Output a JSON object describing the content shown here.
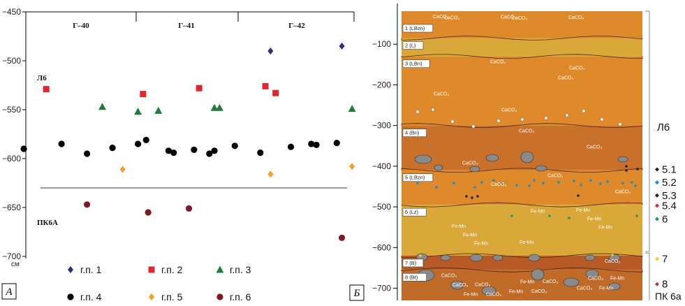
{
  "chart_data": [
    {
      "type": "scatter",
      "panel_label": "А",
      "yunit": "см",
      "ylim": [
        -700,
        -450
      ],
      "yticks": [
        -450,
        -500,
        -550,
        -600,
        -650,
        -700
      ],
      "grid": false,
      "sections": [
        "Г–40",
        "Г–41",
        "Г–42"
      ],
      "zones": [
        {
          "label": "Л6",
          "y": -520
        },
        {
          "label": "ПК6А",
          "y": -668
        }
      ],
      "boundary_y": -630,
      "legend_position": "bottom",
      "series": [
        {
          "name": "г.п. 1",
          "marker": "diamond",
          "color": "#2b2f7a",
          "points": [
            [
              2.4,
              -490
            ],
            [
              3.1,
              -485
            ]
          ]
        },
        {
          "name": "г.п. 2",
          "marker": "square",
          "color": "#e3262c",
          "points": [
            [
              0.2,
              -529
            ],
            [
              1.15,
              -534
            ],
            [
              1.7,
              -528
            ],
            [
              2.35,
              -526
            ],
            [
              2.45,
              -533
            ]
          ]
        },
        {
          "name": "г.п. 3",
          "marker": "triangle",
          "color": "#1e7d3d",
          "points": [
            [
              0.75,
              -547
            ],
            [
              1.1,
              -552
            ],
            [
              1.3,
              -551
            ],
            [
              1.85,
              -548
            ],
            [
              1.9,
              -548
            ],
            [
              3.2,
              -549
            ]
          ]
        },
        {
          "name": "г.п. 4",
          "marker": "circle",
          "color": "#000000",
          "points": [
            [
              -0.02,
              -590
            ],
            [
              0.35,
              -585
            ],
            [
              0.6,
              -595
            ],
            [
              0.85,
              -589
            ],
            [
              1.1,
              -585
            ],
            [
              1.18,
              -581
            ],
            [
              1.4,
              -592
            ],
            [
              1.45,
              -594
            ],
            [
              1.65,
              -591
            ],
            [
              1.8,
              -595
            ],
            [
              1.85,
              -592
            ],
            [
              2.05,
              -587
            ],
            [
              2.3,
              -594
            ],
            [
              2.6,
              -588
            ],
            [
              2.8,
              -585
            ],
            [
              2.85,
              -586
            ],
            [
              3.05,
              -584
            ]
          ]
        },
        {
          "name": "г.п. 5",
          "marker": "diamond",
          "color": "#f2a02a",
          "points": [
            [
              0.95,
              -611
            ],
            [
              2.4,
              -616
            ],
            [
              3.2,
              -608
            ]
          ]
        },
        {
          "name": "г.п. 6",
          "marker": "circle",
          "color": "#7b1c22",
          "points": [
            [
              0.6,
              -647
            ],
            [
              1.2,
              -655
            ],
            [
              1.6,
              -651
            ],
            [
              3.1,
              -681
            ]
          ]
        }
      ]
    },
    {
      "type": "diagram",
      "panel_label": "Б",
      "ylim": [
        -730,
        0
      ],
      "yticks": [
        -100,
        -200,
        -300,
        -400,
        -500,
        -600,
        -700
      ],
      "grid": false,
      "horizons": [
        {
          "label": "1 (LBzn)",
          "top": 0,
          "bottom": -85,
          "color": "#de8a2a",
          "annotations": [
            "CaCO₃",
            "CaCO₃",
            "CaCO₃",
            "CaCO₃",
            "CaCO₃"
          ]
        },
        {
          "label": "2 (L)",
          "top": -85,
          "bottom": -130,
          "color": "#d9a838",
          "annotations": []
        },
        {
          "label": "3 (LBn)",
          "top": -130,
          "bottom": -300,
          "color": "#de8a2a",
          "annotations": [
            "CaCO₃",
            "CaCO₃",
            "CaCO₃",
            "CaCO₃",
            "CaCO₃"
          ]
        },
        {
          "label": "4 (Bn)",
          "top": -300,
          "bottom": -410,
          "color": "#c9702a",
          "annotations": [
            "CaCO₃",
            "CaCO₃",
            "CaCO₃"
          ]
        },
        {
          "label": "5 (LBzn)",
          "top": -410,
          "bottom": -495,
          "color": "#de8a2a",
          "annotations": [
            "CaCO₃",
            "CaCO₃",
            "CaCO₃"
          ]
        },
        {
          "label": "6 (Lz)",
          "top": -495,
          "bottom": -620,
          "color": "#d9a838",
          "annotations": [
            "Fe-Mn",
            "Fe-Mn",
            "Fe-Mn",
            "Fe-Mn",
            "Fe-Mn",
            "Fe-Mn",
            "Fe-Mn",
            "Fe-Mn"
          ]
        },
        {
          "label": "7 (B)",
          "top": -620,
          "bottom": -655,
          "color": "#b85a26",
          "annotations": [
            "CaCO₃"
          ]
        },
        {
          "label": "8 (Bt)",
          "top": -655,
          "bottom": -730,
          "color": "#c06a28",
          "annotations": [
            "CaCO₃",
            "Fe-Mn",
            "CaCO₃",
            "CaCO₃",
            "Fe-Mn",
            "CaCO₃",
            "Fe-Mn",
            "CaCO₃",
            "Fe-Mn",
            "CaCO₃",
            "CaCO₃",
            "Fe-Mn",
            "CaCO₃"
          ]
        }
      ],
      "units": [
        {
          "label": "Л6",
          "top": -20,
          "bottom": -610
        },
        {
          "label": "ПК 6а",
          "top": -610,
          "bottom": -730
        }
      ],
      "legend": [
        {
          "label": "5.1",
          "color": "#222222",
          "y": -408
        },
        {
          "label": "5.2",
          "color": "#1b8fc4",
          "y": -440
        },
        {
          "label": "5.3",
          "color": "#222222",
          "y": -472
        },
        {
          "label": "5.4",
          "color": "#e3262c",
          "y": -497
        },
        {
          "label": "6",
          "color": "#1a9a6c",
          "y": -530
        },
        {
          "label": "7",
          "color": "#f3d21b",
          "y": -628
        },
        {
          "label": "8",
          "color": "#b03a30",
          "y": -690
        }
      ]
    }
  ]
}
